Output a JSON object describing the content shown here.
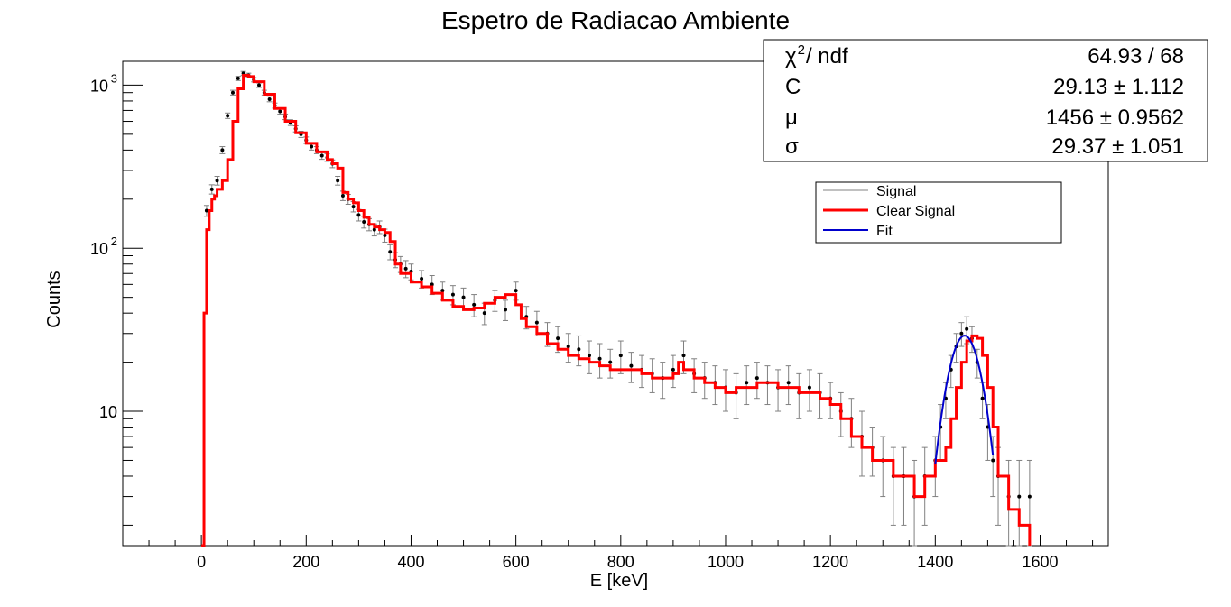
{
  "chart_data": {
    "type": "scatter",
    "title": "Espetro de Radiacao Ambiente",
    "xlabel": "E [keV]",
    "ylabel": "Counts",
    "xlim": [
      -150,
      1730
    ],
    "ylim": [
      1.5,
      1400
    ],
    "yscale": "log",
    "grid": false,
    "legend_position": "upper-right",
    "x_ticks": [
      {
        "value": 0,
        "label": "0"
      },
      {
        "value": 200,
        "label": "200"
      },
      {
        "value": 400,
        "label": "400"
      },
      {
        "value": 600,
        "label": "600"
      },
      {
        "value": 800,
        "label": "800"
      },
      {
        "value": 1000,
        "label": "1000"
      },
      {
        "value": 1200,
        "label": "1200"
      },
      {
        "value": 1400,
        "label": "1400"
      },
      {
        "value": 1600,
        "label": "1600"
      }
    ],
    "y_ticks": [
      {
        "value": 10,
        "label": "10",
        "sup": ""
      },
      {
        "value": 100,
        "label": "10",
        "sup": "2"
      },
      {
        "value": 1000,
        "label": "10",
        "sup": "3"
      }
    ],
    "series": [
      {
        "name": "Signal",
        "style": "points-with-errors",
        "color": "#808080",
        "marker_color": "#000000",
        "x": [
          10,
          20,
          30,
          40,
          50,
          60,
          70,
          80,
          90,
          100,
          110,
          120,
          130,
          140,
          150,
          160,
          170,
          180,
          190,
          200,
          210,
          220,
          230,
          240,
          250,
          260,
          270,
          280,
          290,
          300,
          310,
          320,
          330,
          340,
          350,
          360,
          370,
          380,
          390,
          400,
          420,
          440,
          460,
          480,
          500,
          520,
          540,
          560,
          580,
          600,
          620,
          640,
          660,
          680,
          700,
          720,
          740,
          760,
          780,
          800,
          820,
          840,
          860,
          880,
          900,
          920,
          940,
          960,
          980,
          1000,
          1020,
          1040,
          1060,
          1080,
          1100,
          1120,
          1140,
          1160,
          1180,
          1200,
          1220,
          1240,
          1260,
          1280,
          1300,
          1320,
          1340,
          1360,
          1380,
          1400,
          1410,
          1420,
          1430,
          1440,
          1450,
          1460,
          1470,
          1480,
          1490,
          1500,
          1510,
          1520,
          1540,
          1560,
          1580
        ],
        "y": [
          170,
          230,
          260,
          400,
          650,
          900,
          1100,
          1180,
          1150,
          1080,
          1000,
          900,
          820,
          750,
          690,
          640,
          590,
          540,
          500,
          460,
          420,
          400,
          370,
          360,
          330,
          260,
          210,
          200,
          180,
          160,
          145,
          140,
          130,
          135,
          120,
          95,
          85,
          80,
          75,
          72,
          65,
          60,
          55,
          52,
          50,
          45,
          40,
          48,
          42,
          55,
          38,
          35,
          30,
          28,
          25,
          24,
          22,
          21,
          20,
          22,
          19,
          18,
          17,
          16,
          18,
          22,
          17,
          16,
          15,
          14,
          13,
          15,
          16,
          15,
          14,
          15,
          13,
          14,
          13,
          12,
          10,
          9,
          7,
          6,
          5,
          4,
          4,
          3,
          4,
          5,
          8,
          12,
          18,
          25,
          30,
          32,
          28,
          20,
          12,
          8,
          5,
          4,
          3,
          3,
          3
        ],
        "yerr": [
          13,
          15,
          16,
          20,
          25,
          30,
          33,
          34,
          34,
          33,
          32,
          30,
          29,
          27,
          26,
          25,
          24,
          23,
          22,
          21,
          20,
          20,
          19,
          19,
          18,
          16,
          14,
          14,
          13,
          13,
          12,
          12,
          11,
          12,
          11,
          10,
          9,
          9,
          9,
          8,
          8,
          8,
          7,
          7,
          7,
          7,
          6,
          7,
          6,
          7,
          6,
          6,
          5,
          5,
          5,
          5,
          5,
          5,
          4,
          5,
          4,
          4,
          4,
          4,
          4,
          5,
          4,
          4,
          4,
          4,
          4,
          4,
          4,
          4,
          4,
          4,
          4,
          4,
          4,
          3,
          3,
          3,
          3,
          2,
          2,
          2,
          2,
          2,
          2,
          2,
          3,
          3,
          4,
          5,
          5,
          6,
          5,
          4,
          3,
          3,
          2,
          2,
          2,
          2,
          2
        ]
      },
      {
        "name": "Clear Signal",
        "style": "step-line",
        "color": "#ff0000",
        "x": [
          0,
          5,
          10,
          15,
          20,
          25,
          30,
          40,
          50,
          60,
          70,
          80,
          90,
          100,
          120,
          140,
          160,
          180,
          200,
          220,
          240,
          250,
          260,
          270,
          280,
          290,
          300,
          310,
          320,
          330,
          340,
          350,
          360,
          370,
          380,
          400,
          420,
          440,
          460,
          480,
          500,
          520,
          540,
          560,
          580,
          600,
          610,
          620,
          640,
          660,
          680,
          700,
          720,
          740,
          760,
          780,
          800,
          820,
          840,
          860,
          880,
          900,
          910,
          920,
          940,
          960,
          980,
          1000,
          1020,
          1040,
          1060,
          1080,
          1100,
          1120,
          1140,
          1160,
          1180,
          1200,
          1220,
          1240,
          1260,
          1280,
          1300,
          1320,
          1340,
          1360,
          1380,
          1400,
          1410,
          1420,
          1430,
          1440,
          1450,
          1460,
          1470,
          1480,
          1490,
          1500,
          1510,
          1520,
          1540,
          1560,
          1580
        ],
        "y": [
          1.5,
          40,
          130,
          170,
          200,
          210,
          230,
          260,
          350,
          600,
          950,
          1150,
          1130,
          1050,
          880,
          720,
          600,
          510,
          440,
          390,
          350,
          330,
          310,
          220,
          200,
          190,
          170,
          155,
          140,
          135,
          130,
          125,
          110,
          80,
          70,
          62,
          58,
          53,
          48,
          44,
          42,
          43,
          46,
          50,
          52,
          45,
          37,
          33,
          30,
          26,
          24,
          22,
          21,
          20,
          19,
          18,
          18,
          18,
          17,
          16,
          16,
          17,
          20,
          18,
          16,
          15,
          14,
          13,
          14,
          14,
          15,
          15,
          14,
          14,
          13,
          13,
          12,
          11,
          9,
          7,
          6,
          5,
          5,
          4,
          4,
          3,
          4,
          5,
          5,
          6,
          9,
          14,
          20,
          27,
          29,
          28,
          22,
          14,
          8,
          4,
          2.5,
          2,
          1.5
        ]
      },
      {
        "name": "Fit",
        "style": "line",
        "color": "#0000cc",
        "fn": "gaussian",
        "C": 29.13,
        "mu": 1456,
        "sigma": 29.37,
        "range": [
          1400,
          1510
        ]
      }
    ],
    "stats_box": {
      "rows": [
        {
          "label": "χ",
          "sup": "2",
          "label_suffix": " / ndf",
          "value": "64.93 / 68"
        },
        {
          "label": "C",
          "sup": "",
          "label_suffix": "",
          "value": "29.13 ± 1.112"
        },
        {
          "label": "μ",
          "sup": "",
          "label_suffix": "",
          "value": "1456 ± 0.9562"
        },
        {
          "label": "σ",
          "sup": "",
          "label_suffix": "",
          "value": "29.37 ± 1.051"
        }
      ]
    }
  }
}
